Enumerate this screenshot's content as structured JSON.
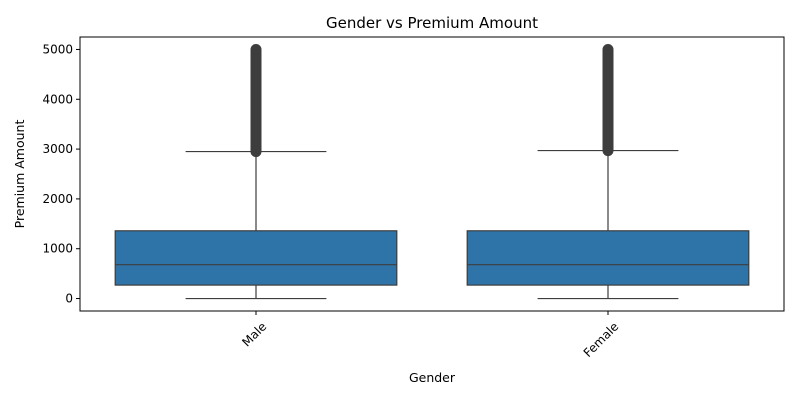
{
  "chart_data": {
    "type": "box",
    "title": "Gender vs Premium Amount",
    "xlabel": "Gender",
    "ylabel": "Premium Amount",
    "categories": [
      "Male",
      "Female"
    ],
    "ylim": [
      -250,
      5250
    ],
    "yticks": [
      0,
      1000,
      2000,
      3000,
      4000,
      5000
    ],
    "grid": false,
    "box_color": "#2f74a8",
    "line_color": "#3d3d3d",
    "boxes": [
      {
        "category": "Male",
        "min": 0,
        "q1": 270,
        "median": 680,
        "q3": 1360,
        "whisker_high": 2950,
        "outlier_range": [
          2950,
          5000
        ]
      },
      {
        "category": "Female",
        "min": 0,
        "q1": 270,
        "median": 680,
        "q3": 1360,
        "whisker_high": 2970,
        "outlier_range": [
          2970,
          5000
        ]
      }
    ]
  }
}
